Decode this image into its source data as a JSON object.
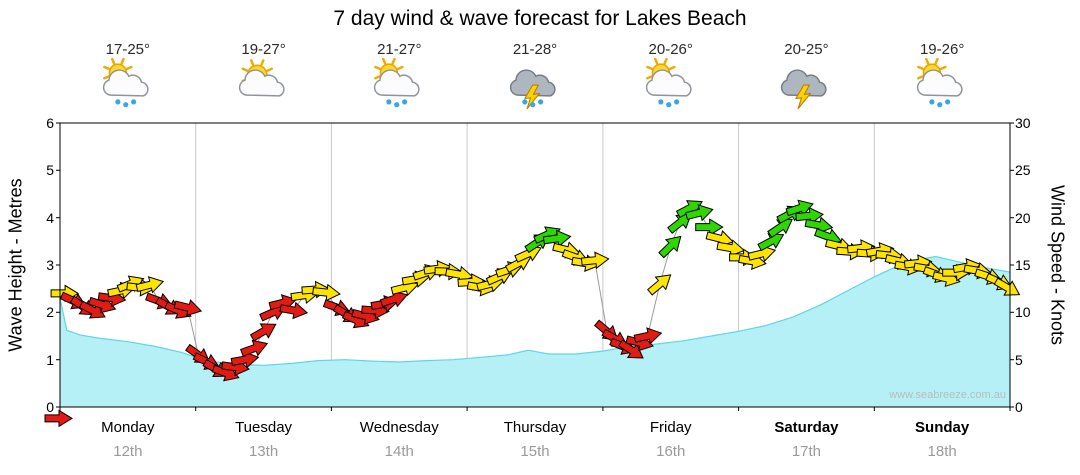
{
  "title": "7 day wind & wave forecast for Lakes Beach",
  "watermark": "www.seabreeze.com.au",
  "axis_left": {
    "label": "Wave Height - Metres",
    "ticks": [
      0,
      1,
      2,
      3,
      4,
      5,
      6
    ]
  },
  "axis_right": {
    "label": "Wind Speed - Knots",
    "ticks": [
      0,
      5,
      10,
      15,
      20,
      25,
      30
    ]
  },
  "days": [
    {
      "name": "Monday",
      "date": "12th",
      "temp": "17-25°",
      "icon": "sun-cloud-rain",
      "bold": false
    },
    {
      "name": "Tuesday",
      "date": "13th",
      "temp": "19-27°",
      "icon": "sun-cloud",
      "bold": false
    },
    {
      "name": "Wednesday",
      "date": "14th",
      "temp": "21-27°",
      "icon": "sun-cloud-rain",
      "bold": false
    },
    {
      "name": "Thursday",
      "date": "15th",
      "temp": "21-28°",
      "icon": "storm-rain",
      "bold": false
    },
    {
      "name": "Friday",
      "date": "16th",
      "temp": "20-26°",
      "icon": "sun-cloud-rain",
      "bold": false
    },
    {
      "name": "Saturday",
      "date": "17th",
      "temp": "20-25°",
      "icon": "storm",
      "bold": true
    },
    {
      "name": "Sunday",
      "date": "18th",
      "temp": "19-26°",
      "icon": "sun-cloud-rain",
      "bold": true
    }
  ],
  "colors": {
    "wave_fill": "#b5f0f6",
    "wave_edge": "#5fd6e6",
    "arrow_red": "#e31b12",
    "arrow_yellow": "#ffe400",
    "arrow_green": "#2fd600",
    "grid": "#c9c9c9",
    "connector": "#9a9a9a"
  },
  "chart_data": {
    "type": "line",
    "title": "7 day wind & wave forecast for Lakes Beach",
    "x": {
      "unit": "days",
      "range": [
        0,
        7
      ],
      "categories": [
        "Monday 12th",
        "Tuesday 13th",
        "Wednesday 14th",
        "Thursday 15th",
        "Friday 16th",
        "Saturday 17th",
        "Sunday 18th"
      ]
    },
    "y_left": {
      "label": "Wave Height - Metres",
      "range": [
        0,
        6
      ]
    },
    "y_right": {
      "label": "Wind Speed - Knots",
      "range": [
        0,
        30
      ]
    },
    "legend": "arrow colors: r=red (light/onshore), y=yellow (moderate), g=green (fresh)",
    "series": [
      {
        "name": "Wave Height",
        "unit": "m",
        "axis": "left",
        "style": "area",
        "points": [
          [
            0,
            2.3
          ],
          [
            0.05,
            1.62
          ],
          [
            0.15,
            1.52
          ],
          [
            0.3,
            1.45
          ],
          [
            0.5,
            1.38
          ],
          [
            0.7,
            1.28
          ],
          [
            0.9,
            1.15
          ],
          [
            1.0,
            1.05
          ],
          [
            1.15,
            0.95
          ],
          [
            1.3,
            0.9
          ],
          [
            1.5,
            0.88
          ],
          [
            1.7,
            0.92
          ],
          [
            1.9,
            0.98
          ],
          [
            2.1,
            1.0
          ],
          [
            2.3,
            0.97
          ],
          [
            2.5,
            0.95
          ],
          [
            2.7,
            0.98
          ],
          [
            2.9,
            1.0
          ],
          [
            3.1,
            1.05
          ],
          [
            3.3,
            1.1
          ],
          [
            3.45,
            1.2
          ],
          [
            3.6,
            1.12
          ],
          [
            3.8,
            1.12
          ],
          [
            4.0,
            1.18
          ],
          [
            4.2,
            1.28
          ],
          [
            4.4,
            1.33
          ],
          [
            4.6,
            1.4
          ],
          [
            4.8,
            1.5
          ],
          [
            5.0,
            1.6
          ],
          [
            5.2,
            1.72
          ],
          [
            5.4,
            1.9
          ],
          [
            5.6,
            2.15
          ],
          [
            5.8,
            2.45
          ],
          [
            6.0,
            2.75
          ],
          [
            6.15,
            2.95
          ],
          [
            6.3,
            3.1
          ],
          [
            6.45,
            3.18
          ],
          [
            6.6,
            3.08
          ],
          [
            6.8,
            2.95
          ],
          [
            7.0,
            2.85
          ]
        ]
      },
      {
        "name": "Wind Speed",
        "unit": "knots",
        "axis": "right",
        "style": "arrows",
        "start_arrow": [
          -0.015,
          -1.2,
          0,
          "r"
        ],
        "arrows": [
          [
            0.03,
            12.0,
            0,
            "y"
          ],
          [
            0.1,
            11.2,
            25,
            "r"
          ],
          [
            0.17,
            10.6,
            35,
            "r"
          ],
          [
            0.24,
            10.2,
            28,
            "r"
          ],
          [
            0.31,
            10.8,
            18,
            "r"
          ],
          [
            0.38,
            11.5,
            8,
            "r"
          ],
          [
            0.45,
            12.3,
            -12,
            "y"
          ],
          [
            0.52,
            13.0,
            -22,
            "y"
          ],
          [
            0.59,
            12.6,
            6,
            "y"
          ],
          [
            0.66,
            12.9,
            -14,
            "y"
          ],
          [
            0.73,
            11.2,
            20,
            "r"
          ],
          [
            0.8,
            10.6,
            30,
            "r"
          ],
          [
            0.87,
            10.2,
            24,
            "r"
          ],
          [
            0.94,
            10.5,
            14,
            "r"
          ],
          [
            1.02,
            5.5,
            35,
            "r"
          ],
          [
            1.08,
            4.8,
            25,
            "r"
          ],
          [
            1.15,
            4.0,
            30,
            "r"
          ],
          [
            1.22,
            3.6,
            20,
            "r"
          ],
          [
            1.29,
            4.2,
            8,
            "r"
          ],
          [
            1.36,
            5.0,
            -10,
            "r"
          ],
          [
            1.43,
            6.2,
            -20,
            "r"
          ],
          [
            1.5,
            8.0,
            -30,
            "r"
          ],
          [
            1.57,
            10.0,
            -24,
            "r"
          ],
          [
            1.64,
            11.0,
            -14,
            "r"
          ],
          [
            1.72,
            10.2,
            10,
            "r"
          ],
          [
            1.8,
            11.8,
            -8,
            "y"
          ],
          [
            1.88,
            12.4,
            -4,
            "y"
          ],
          [
            1.96,
            12.1,
            6,
            "y"
          ],
          [
            2.04,
            10.5,
            20,
            "r"
          ],
          [
            2.11,
            9.8,
            30,
            "r"
          ],
          [
            2.18,
            9.2,
            24,
            "r"
          ],
          [
            2.25,
            9.6,
            14,
            "r"
          ],
          [
            2.32,
            10.2,
            4,
            "r"
          ],
          [
            2.39,
            10.9,
            -10,
            "r"
          ],
          [
            2.46,
            11.4,
            -18,
            "r"
          ],
          [
            2.54,
            12.6,
            -14,
            "y"
          ],
          [
            2.62,
            13.5,
            -10,
            "y"
          ],
          [
            2.7,
            14.2,
            -18,
            "y"
          ],
          [
            2.78,
            14.6,
            -8,
            "y"
          ],
          [
            2.86,
            14.3,
            2,
            "y"
          ],
          [
            2.94,
            14.0,
            10,
            "y"
          ],
          [
            3.03,
            13.2,
            -4,
            "y"
          ],
          [
            3.1,
            12.6,
            10,
            "y"
          ],
          [
            3.17,
            13.0,
            -14,
            "y"
          ],
          [
            3.24,
            13.8,
            -24,
            "y"
          ],
          [
            3.31,
            14.5,
            -18,
            "y"
          ],
          [
            3.38,
            15.2,
            -28,
            "y"
          ],
          [
            3.45,
            16.2,
            -24,
            "y"
          ],
          [
            3.52,
            17.4,
            -34,
            "g"
          ],
          [
            3.59,
            18.2,
            -24,
            "g"
          ],
          [
            3.66,
            17.8,
            -8,
            "g"
          ],
          [
            3.73,
            16.6,
            14,
            "y"
          ],
          [
            3.8,
            15.8,
            20,
            "y"
          ],
          [
            3.87,
            15.2,
            10,
            "y"
          ],
          [
            3.94,
            15.5,
            -6,
            "y"
          ],
          [
            4.03,
            8.0,
            40,
            "r"
          ],
          [
            4.09,
            7.2,
            30,
            "r"
          ],
          [
            4.15,
            6.4,
            22,
            "r"
          ],
          [
            4.21,
            6.0,
            34,
            "r"
          ],
          [
            4.27,
            6.8,
            14,
            "r"
          ],
          [
            4.33,
            7.5,
            -12,
            "r"
          ],
          [
            4.42,
            13.0,
            -40,
            "y"
          ],
          [
            4.5,
            17.0,
            -44,
            "g"
          ],
          [
            4.57,
            19.5,
            -38,
            "g"
          ],
          [
            4.64,
            21.0,
            -28,
            "g"
          ],
          [
            4.71,
            20.5,
            -14,
            "g"
          ],
          [
            4.78,
            19.0,
            0,
            "g"
          ],
          [
            4.86,
            17.8,
            14,
            "y"
          ],
          [
            4.94,
            16.8,
            10,
            "y"
          ],
          [
            5.03,
            15.8,
            0,
            "y"
          ],
          [
            5.1,
            15.4,
            10,
            "y"
          ],
          [
            5.17,
            16.2,
            -14,
            "y"
          ],
          [
            5.24,
            17.5,
            -28,
            "g"
          ],
          [
            5.31,
            19.0,
            -34,
            "g"
          ],
          [
            5.38,
            20.4,
            -28,
            "g"
          ],
          [
            5.45,
            21.0,
            -18,
            "g"
          ],
          [
            5.52,
            20.2,
            -6,
            "g"
          ],
          [
            5.59,
            19.2,
            10,
            "g"
          ],
          [
            5.66,
            18.0,
            20,
            "g"
          ],
          [
            5.74,
            17.0,
            14,
            "y"
          ],
          [
            5.82,
            16.4,
            4,
            "y"
          ],
          [
            5.9,
            16.8,
            -6,
            "y"
          ],
          [
            5.97,
            16.2,
            4,
            "y"
          ],
          [
            6.04,
            16.5,
            -10,
            "y"
          ],
          [
            6.11,
            16.0,
            6,
            "y"
          ],
          [
            6.18,
            15.4,
            14,
            "y"
          ],
          [
            6.25,
            14.8,
            10,
            "y"
          ],
          [
            6.32,
            15.2,
            -6,
            "y"
          ],
          [
            6.39,
            14.6,
            10,
            "y"
          ],
          [
            6.46,
            14.0,
            20,
            "y"
          ],
          [
            6.53,
            13.6,
            14,
            "y"
          ],
          [
            6.6,
            14.2,
            0,
            "y"
          ],
          [
            6.68,
            14.8,
            -10,
            "y"
          ],
          [
            6.76,
            14.4,
            10,
            "y"
          ],
          [
            6.84,
            13.8,
            18,
            "y"
          ],
          [
            6.92,
            13.2,
            24,
            "y"
          ],
          [
            6.98,
            12.6,
            30,
            "y"
          ]
        ]
      }
    ]
  }
}
